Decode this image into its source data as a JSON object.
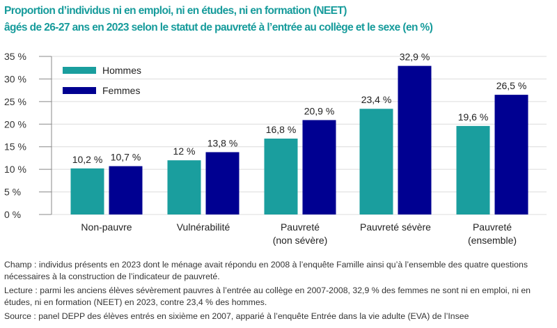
{
  "title_line1": "Proportion d’individus ni en emploi, ni en études, ni en formation (NEET)",
  "title_line2": "âgés de 26-27 ans en 2023 selon le statut de pauvreté à l’entrée au collège et le sexe (en %)",
  "chart_data": {
    "type": "bar",
    "categories": [
      [
        "Non-pauvre"
      ],
      [
        "Vulnérabilité"
      ],
      [
        "Pauvreté",
        "(non sévère)"
      ],
      [
        "Pauvreté sévère"
      ],
      [
        "Pauvreté",
        "(ensemble)"
      ]
    ],
    "series": [
      {
        "name": "Hommes",
        "color": "#1a9e9e",
        "values": [
          10.2,
          12,
          16.8,
          23.4,
          19.6
        ],
        "labels": [
          "10,2 %",
          "12 %",
          "16,8 %",
          "23,4 %",
          "19,6 %"
        ]
      },
      {
        "name": "Femmes",
        "color": "#000091",
        "values": [
          10.7,
          13.8,
          20.9,
          32.9,
          26.5
        ],
        "labels": [
          "10,7 %",
          "13,8 %",
          "20,9 %",
          "32,9 %",
          "26,5 %"
        ]
      }
    ],
    "ylim": [
      0,
      35
    ],
    "yticks": [
      "0 %",
      "5 %",
      "10 %",
      "15 %",
      "20 %",
      "25 %",
      "30 %",
      "35 %"
    ],
    "grid": true,
    "legend": "top-left"
  },
  "notes": {
    "champ": "Champ : individus présents en 2023 dont le ménage avait répondu en 2008 à l’enquête Famille ainsi qu’à l’ensemble des quatre questions nécessaires à la construction de l’indicateur de pauvreté.",
    "lecture": "Lecture : parmi les anciens élèves sévèrement pauvres à l’entrée au collège en 2007-2008, 32,9 % des femmes ne sont ni en emploi, ni en études, ni en formation (NEET) en 2023, contre 23,4 % des hommes.",
    "source": "Source : panel DEPP des élèves entrés en sixième en 2007, apparié à l’enquête Entrée dans la vie adulte (EVA) de l’Insee"
  }
}
